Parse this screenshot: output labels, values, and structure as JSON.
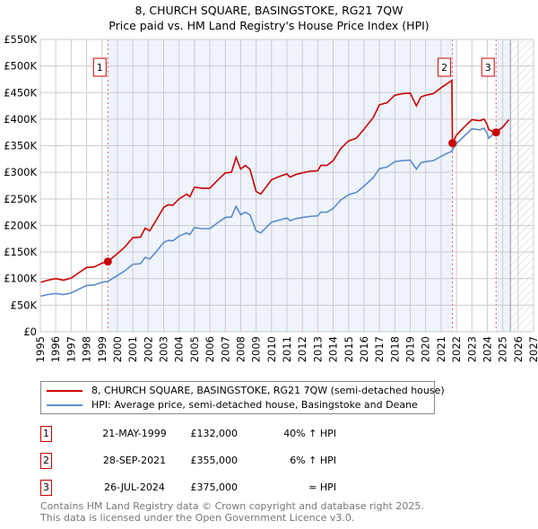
{
  "chart_data": {
    "type": "line",
    "title": "8, CHURCH SQUARE, BASINGSTOKE, RG21 7QW",
    "subtitle": "Price paid vs. HM Land Registry's House Price Index (HPI)",
    "xlim": [
      1995,
      2027
    ],
    "ylim": [
      0,
      550
    ],
    "x_ticks": [
      "1995",
      "1996",
      "1997",
      "1998",
      "1999",
      "2000",
      "2001",
      "2002",
      "2003",
      "2004",
      "2005",
      "2006",
      "2007",
      "2008",
      "2009",
      "2010",
      "2011",
      "2012",
      "2013",
      "2014",
      "2015",
      "2016",
      "2017",
      "2018",
      "2019",
      "2020",
      "2021",
      "2022",
      "2023",
      "2024",
      "2025",
      "2026",
      "2027"
    ],
    "y_ticks": [
      {
        "v": 0,
        "label": "£0"
      },
      {
        "v": 50,
        "label": "£50K"
      },
      {
        "v": 100,
        "label": "£100K"
      },
      {
        "v": 150,
        "label": "£150K"
      },
      {
        "v": 200,
        "label": "£200K"
      },
      {
        "v": 250,
        "label": "£250K"
      },
      {
        "v": 300,
        "label": "£300K"
      },
      {
        "v": 350,
        "label": "£350K"
      },
      {
        "v": 400,
        "label": "£400K"
      },
      {
        "v": 450,
        "label": "£450K"
      },
      {
        "v": 500,
        "label": "£500K"
      },
      {
        "v": 550,
        "label": "£550K"
      }
    ],
    "grid": true,
    "shaded_ranges": [
      [
        1999.38,
        2021.74
      ],
      [
        2024.57,
        2025.5
      ]
    ],
    "forecast_hatch_from": 2025.5,
    "series": [
      {
        "name": "8, CHURCH SQUARE, BASINGSTOKE, RG21 7QW (semi-detached house)",
        "color": "#cc0000",
        "points": [
          [
            1995,
            93
          ],
          [
            1995.5,
            97
          ],
          [
            1996,
            100
          ],
          [
            1996.5,
            97
          ],
          [
            1997,
            101
          ],
          [
            1997.5,
            111
          ],
          [
            1998,
            121
          ],
          [
            1998.5,
            122
          ],
          [
            1999,
            129
          ],
          [
            1999.38,
            132
          ],
          [
            2000,
            147
          ],
          [
            2000.5,
            160
          ],
          [
            2001,
            177
          ],
          [
            2001.5,
            178
          ],
          [
            2001.8,
            195
          ],
          [
            2002.1,
            190
          ],
          [
            2002.5,
            209
          ],
          [
            2003,
            234
          ],
          [
            2003.3,
            239
          ],
          [
            2003.6,
            238
          ],
          [
            2004,
            250
          ],
          [
            2004.5,
            259
          ],
          [
            2004.7,
            254
          ],
          [
            2005,
            272
          ],
          [
            2005.5,
            270
          ],
          [
            2006,
            270
          ],
          [
            2006.5,
            285
          ],
          [
            2007,
            299
          ],
          [
            2007.4,
            300
          ],
          [
            2007.7,
            328
          ],
          [
            2008,
            306
          ],
          [
            2008.3,
            313
          ],
          [
            2008.6,
            306
          ],
          [
            2009,
            264
          ],
          [
            2009.3,
            259
          ],
          [
            2010,
            286
          ],
          [
            2010.5,
            292
          ],
          [
            2011,
            297
          ],
          [
            2011.2,
            291
          ],
          [
            2011.6,
            296
          ],
          [
            2012,
            299
          ],
          [
            2012.5,
            302
          ],
          [
            2013,
            303
          ],
          [
            2013.2,
            313
          ],
          [
            2013.6,
            313
          ],
          [
            2014,
            322
          ],
          [
            2014.5,
            345
          ],
          [
            2015,
            359
          ],
          [
            2015.5,
            364
          ],
          [
            2016,
            381
          ],
          [
            2016.6,
            403
          ],
          [
            2017,
            427
          ],
          [
            2017.5,
            431
          ],
          [
            2018,
            445
          ],
          [
            2018.5,
            448
          ],
          [
            2019,
            449
          ],
          [
            2019.4,
            425
          ],
          [
            2019.7,
            442
          ],
          [
            2020,
            445
          ],
          [
            2020.5,
            448
          ],
          [
            2021,
            459
          ],
          [
            2021.7,
            473
          ],
          [
            2021.74,
            355
          ],
          [
            2022,
            370
          ],
          [
            2022.5,
            385
          ],
          [
            2023,
            399
          ],
          [
            2023.5,
            397
          ],
          [
            2023.8,
            400
          ],
          [
            2024,
            389
          ],
          [
            2024.1,
            380
          ],
          [
            2024.57,
            375
          ],
          [
            2025,
            385
          ],
          [
            2025.4,
            399
          ]
        ]
      },
      {
        "name": "HPI: Average price, semi-detached house, Basingstoke and Deane",
        "color": "#5b8ccc",
        "points": [
          [
            1995,
            67
          ],
          [
            1995.5,
            70
          ],
          [
            1996,
            72
          ],
          [
            1996.5,
            70
          ],
          [
            1997,
            73
          ],
          [
            1997.5,
            80
          ],
          [
            1998,
            87
          ],
          [
            1998.5,
            88
          ],
          [
            1999,
            93
          ],
          [
            1999.4,
            95
          ],
          [
            2000,
            106
          ],
          [
            2000.5,
            115
          ],
          [
            2001,
            127
          ],
          [
            2001.5,
            128
          ],
          [
            2001.8,
            140
          ],
          [
            2002.1,
            137
          ],
          [
            2002.5,
            150
          ],
          [
            2003,
            168
          ],
          [
            2003.3,
            172
          ],
          [
            2003.6,
            171
          ],
          [
            2004,
            180
          ],
          [
            2004.5,
            186
          ],
          [
            2004.7,
            183
          ],
          [
            2005,
            196
          ],
          [
            2005.5,
            194
          ],
          [
            2006,
            194
          ],
          [
            2006.5,
            205
          ],
          [
            2007,
            215
          ],
          [
            2007.4,
            216
          ],
          [
            2007.7,
            236
          ],
          [
            2008,
            220
          ],
          [
            2008.3,
            225
          ],
          [
            2008.6,
            220
          ],
          [
            2009,
            190
          ],
          [
            2009.3,
            186
          ],
          [
            2010,
            206
          ],
          [
            2010.5,
            210
          ],
          [
            2011,
            214
          ],
          [
            2011.2,
            209
          ],
          [
            2011.6,
            213
          ],
          [
            2012,
            215
          ],
          [
            2012.5,
            217
          ],
          [
            2013,
            218
          ],
          [
            2013.2,
            225
          ],
          [
            2013.6,
            225
          ],
          [
            2014,
            232
          ],
          [
            2014.5,
            248
          ],
          [
            2015,
            258
          ],
          [
            2015.5,
            262
          ],
          [
            2016,
            274
          ],
          [
            2016.6,
            290
          ],
          [
            2017,
            307
          ],
          [
            2017.5,
            310
          ],
          [
            2018,
            320
          ],
          [
            2018.5,
            322
          ],
          [
            2019,
            323
          ],
          [
            2019.4,
            306
          ],
          [
            2019.7,
            318
          ],
          [
            2020,
            320
          ],
          [
            2020.5,
            322
          ],
          [
            2021,
            330
          ],
          [
            2021.7,
            340
          ],
          [
            2022,
            354
          ],
          [
            2022.5,
            368
          ],
          [
            2023,
            382
          ],
          [
            2023.5,
            380
          ],
          [
            2023.8,
            383
          ],
          [
            2024,
            372
          ],
          [
            2024.1,
            364
          ],
          [
            2024.57,
            377
          ],
          [
            2025,
            385
          ],
          [
            2025.4,
            399
          ]
        ]
      }
    ],
    "sales": [
      {
        "label": "1",
        "x": 1999.38,
        "y": 132
      },
      {
        "label": "2",
        "x": 2021.74,
        "y": 355
      },
      {
        "label": "3",
        "x": 2024.57,
        "y": 375
      }
    ]
  },
  "legend": {
    "property": "8, CHURCH SQUARE, BASINGSTOKE, RG21 7QW (semi-detached house)",
    "hpi": "HPI: Average price, semi-detached house, Basingstoke and Deane"
  },
  "transactions": [
    {
      "num": "1",
      "date": "21-MAY-1999",
      "price": "£132,000",
      "hpi": "40% ↑ HPI"
    },
    {
      "num": "2",
      "date": "28-SEP-2021",
      "price": "£355,000",
      "hpi": "6% ↑ HPI"
    },
    {
      "num": "3",
      "date": "26-JUL-2024",
      "price": "£375,000",
      "hpi": "≈ HPI"
    }
  ],
  "footer": {
    "line1": "Contains HM Land Registry data © Crown copyright and database right 2025.",
    "line2": "This data is licensed under the Open Government Licence v3.0."
  }
}
